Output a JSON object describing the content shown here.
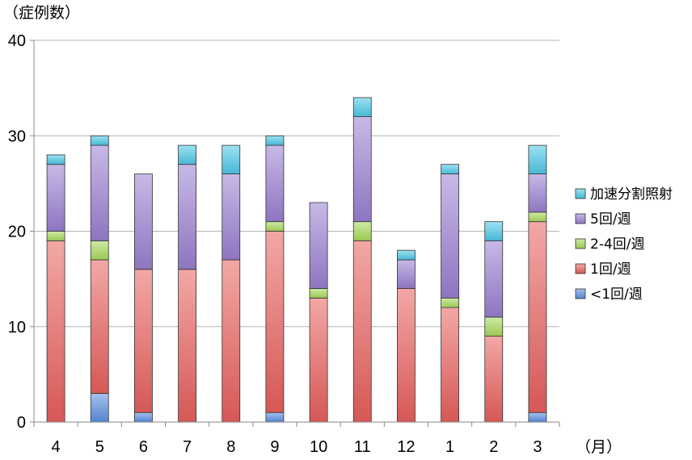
{
  "chart_data": {
    "type": "bar",
    "stacked": true,
    "ylabel": "（症例数）",
    "xlabel": "（月）",
    "ylim": [
      0,
      40
    ],
    "yticks": [
      0,
      10,
      20,
      30,
      40
    ],
    "grid": true,
    "legend_position": "right",
    "categories": [
      "4",
      "5",
      "6",
      "7",
      "8",
      "9",
      "10",
      "11",
      "12",
      "1",
      "2",
      "3"
    ],
    "series": [
      {
        "name": "<1回/週",
        "color": "#5b8fe0",
        "values": [
          0,
          3,
          1,
          0,
          0,
          1,
          0,
          0,
          0,
          0,
          0,
          1
        ]
      },
      {
        "name": "1回/週",
        "color": "#e8605e",
        "values": [
          19,
          14,
          15,
          16,
          17,
          19,
          13,
          19,
          14,
          12,
          9,
          20
        ]
      },
      {
        "name": "2-4回/週",
        "color": "#a8d95a",
        "values": [
          1,
          2,
          0,
          0,
          0,
          1,
          1,
          2,
          0,
          1,
          2,
          1
        ]
      },
      {
        "name": "5回/週",
        "color": "#9a7fd1",
        "values": [
          7,
          10,
          10,
          11,
          9,
          8,
          9,
          11,
          3,
          13,
          8,
          4
        ]
      },
      {
        "name": "加速分割照射",
        "color": "#4dc8e8",
        "values": [
          1,
          1,
          0,
          2,
          3,
          1,
          0,
          2,
          1,
          1,
          2,
          3
        ]
      }
    ]
  }
}
